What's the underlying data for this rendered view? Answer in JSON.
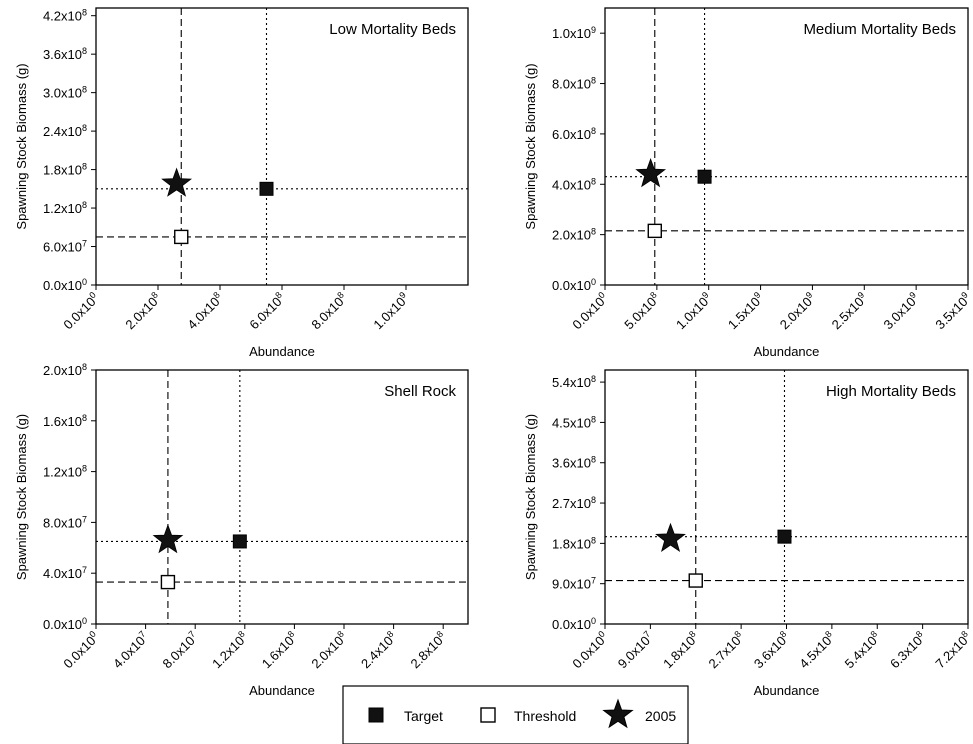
{
  "chart_data": [
    {
      "type": "scatter",
      "title": "Low Mortality Beds",
      "xlabel": "Abundance",
      "ylabel": "Spawning Stock Biomass (g)",
      "xlim": [
        0,
        1200000000.0
      ],
      "ylim": [
        0,
        432000000.0
      ],
      "x_ticks": [
        {
          "value": 0,
          "mantissa": "0.0x10",
          "exp": "0"
        },
        {
          "value": 200000000.0,
          "mantissa": "2.0x10",
          "exp": "8"
        },
        {
          "value": 400000000.0,
          "mantissa": "4.0x10",
          "exp": "8"
        },
        {
          "value": 600000000.0,
          "mantissa": "6.0x10",
          "exp": "8"
        },
        {
          "value": 800000000.0,
          "mantissa": "8.0x10",
          "exp": "8"
        },
        {
          "value": 1000000000.0,
          "mantissa": "1.0x10",
          "exp": "9"
        }
      ],
      "y_ticks": [
        {
          "value": 0,
          "mantissa": "0.0x10",
          "exp": "0"
        },
        {
          "value": 60000000.0,
          "mantissa": "6.0x10",
          "exp": "7"
        },
        {
          "value": 120000000.0,
          "mantissa": "1.2x10",
          "exp": "8"
        },
        {
          "value": 180000000.0,
          "mantissa": "1.8x10",
          "exp": "8"
        },
        {
          "value": 240000000.0,
          "mantissa": "2.4x10",
          "exp": "8"
        },
        {
          "value": 300000000.0,
          "mantissa": "3.0x10",
          "exp": "8"
        },
        {
          "value": 360000000.0,
          "mantissa": "3.6x10",
          "exp": "8"
        },
        {
          "value": 420000000.0,
          "mantissa": "4.2x10",
          "exp": "8"
        }
      ],
      "target": {
        "x": 550000000.0,
        "y": 150000000.0
      },
      "threshold": {
        "x": 275000000.0,
        "y": 75000000.0
      },
      "year_2005": {
        "x": 260000000.0,
        "y": 158000000.0
      }
    },
    {
      "type": "scatter",
      "title": "Medium Mortality Beds",
      "xlabel": "Abundance",
      "ylabel": "Spawning Stock Biomass (g)",
      "xlim": [
        0,
        3500000000.0
      ],
      "ylim": [
        0,
        1100000000.0
      ],
      "x_ticks": [
        {
          "value": 0,
          "mantissa": "0.0x10",
          "exp": "0"
        },
        {
          "value": 500000000.0,
          "mantissa": "5.0x10",
          "exp": "8"
        },
        {
          "value": 1000000000.0,
          "mantissa": "1.0x10",
          "exp": "9"
        },
        {
          "value": 1500000000.0,
          "mantissa": "1.5x10",
          "exp": "9"
        },
        {
          "value": 2000000000.0,
          "mantissa": "2.0x10",
          "exp": "9"
        },
        {
          "value": 2500000000.0,
          "mantissa": "2.5x10",
          "exp": "9"
        },
        {
          "value": 3000000000.0,
          "mantissa": "3.0x10",
          "exp": "9"
        },
        {
          "value": 3500000000.0,
          "mantissa": "3.5x10",
          "exp": "9"
        }
      ],
      "y_ticks": [
        {
          "value": 0,
          "mantissa": "0.0x10",
          "exp": "0"
        },
        {
          "value": 200000000.0,
          "mantissa": "2.0x10",
          "exp": "8"
        },
        {
          "value": 400000000.0,
          "mantissa": "4.0x10",
          "exp": "8"
        },
        {
          "value": 600000000.0,
          "mantissa": "6.0x10",
          "exp": "8"
        },
        {
          "value": 800000000.0,
          "mantissa": "8.0x10",
          "exp": "8"
        },
        {
          "value": 1000000000.0,
          "mantissa": "1.0x10",
          "exp": "9"
        }
      ],
      "target": {
        "x": 960000000.0,
        "y": 430000000.0
      },
      "threshold": {
        "x": 480000000.0,
        "y": 215000000.0
      },
      "year_2005": {
        "x": 440000000.0,
        "y": 440000000.0
      }
    },
    {
      "type": "scatter",
      "title": "Shell Rock",
      "xlabel": "Abundance",
      "ylabel": "Spawning Stock Biomass (g)",
      "xlim": [
        0,
        300000000.0
      ],
      "ylim": [
        0,
        200000000.0
      ],
      "x_ticks": [
        {
          "value": 0,
          "mantissa": "0.0x10",
          "exp": "0"
        },
        {
          "value": 40000000.0,
          "mantissa": "4.0x10",
          "exp": "7"
        },
        {
          "value": 80000000.0,
          "mantissa": "8.0x10",
          "exp": "7"
        },
        {
          "value": 120000000.0,
          "mantissa": "1.2x10",
          "exp": "8"
        },
        {
          "value": 160000000.0,
          "mantissa": "1.6x10",
          "exp": "8"
        },
        {
          "value": 200000000.0,
          "mantissa": "2.0x10",
          "exp": "8"
        },
        {
          "value": 240000000.0,
          "mantissa": "2.4x10",
          "exp": "8"
        },
        {
          "value": 280000000.0,
          "mantissa": "2.8x10",
          "exp": "8"
        }
      ],
      "y_ticks": [
        {
          "value": 0,
          "mantissa": "0.0x10",
          "exp": "0"
        },
        {
          "value": 40000000.0,
          "mantissa": "4.0x10",
          "exp": "7"
        },
        {
          "value": 80000000.0,
          "mantissa": "8.0x10",
          "exp": "7"
        },
        {
          "value": 120000000.0,
          "mantissa": "1.2x10",
          "exp": "8"
        },
        {
          "value": 160000000.0,
          "mantissa": "1.6x10",
          "exp": "8"
        },
        {
          "value": 200000000.0,
          "mantissa": "2.0x10",
          "exp": "8"
        }
      ],
      "target": {
        "x": 116000000.0,
        "y": 65000000.0
      },
      "threshold": {
        "x": 58000000.0,
        "y": 33000000.0
      },
      "year_2005": {
        "x": 58000000.0,
        "y": 66000000.0
      }
    },
    {
      "type": "scatter",
      "title": "High Mortality Beds",
      "xlabel": "Abundance",
      "ylabel": "Spawning Stock Biomass (g)",
      "xlim": [
        0,
        720000000.0
      ],
      "ylim": [
        0,
        567000000.0
      ],
      "x_ticks": [
        {
          "value": 0,
          "mantissa": "0.0x10",
          "exp": "0"
        },
        {
          "value": 90000000.0,
          "mantissa": "9.0x10",
          "exp": "7"
        },
        {
          "value": 180000000.0,
          "mantissa": "1.8x10",
          "exp": "8"
        },
        {
          "value": 270000000.0,
          "mantissa": "2.7x10",
          "exp": "8"
        },
        {
          "value": 360000000.0,
          "mantissa": "3.6x10",
          "exp": "8"
        },
        {
          "value": 450000000.0,
          "mantissa": "4.5x10",
          "exp": "8"
        },
        {
          "value": 540000000.0,
          "mantissa": "5.4x10",
          "exp": "8"
        },
        {
          "value": 630000000.0,
          "mantissa": "6.3x10",
          "exp": "8"
        },
        {
          "value": 720000000.0,
          "mantissa": "7.2x10",
          "exp": "8"
        }
      ],
      "y_ticks": [
        {
          "value": 0,
          "mantissa": "0.0x10",
          "exp": "0"
        },
        {
          "value": 90000000.0,
          "mantissa": "9.0x10",
          "exp": "7"
        },
        {
          "value": 180000000.0,
          "mantissa": "1.8x10",
          "exp": "8"
        },
        {
          "value": 270000000.0,
          "mantissa": "2.7x10",
          "exp": "8"
        },
        {
          "value": 360000000.0,
          "mantissa": "3.6x10",
          "exp": "8"
        },
        {
          "value": 450000000.0,
          "mantissa": "4.5x10",
          "exp": "8"
        },
        {
          "value": 540000000.0,
          "mantissa": "5.4x10",
          "exp": "8"
        }
      ],
      "target": {
        "x": 356000000.0,
        "y": 195000000.0
      },
      "threshold": {
        "x": 180000000.0,
        "y": 97000000.0
      },
      "year_2005": {
        "x": 130000000.0,
        "y": 190000000.0
      }
    }
  ],
  "legend": {
    "items": [
      {
        "label": "Target",
        "marker": "filled-square"
      },
      {
        "label": "Threshold",
        "marker": "open-square"
      },
      {
        "label": "2005",
        "marker": "star"
      }
    ]
  }
}
